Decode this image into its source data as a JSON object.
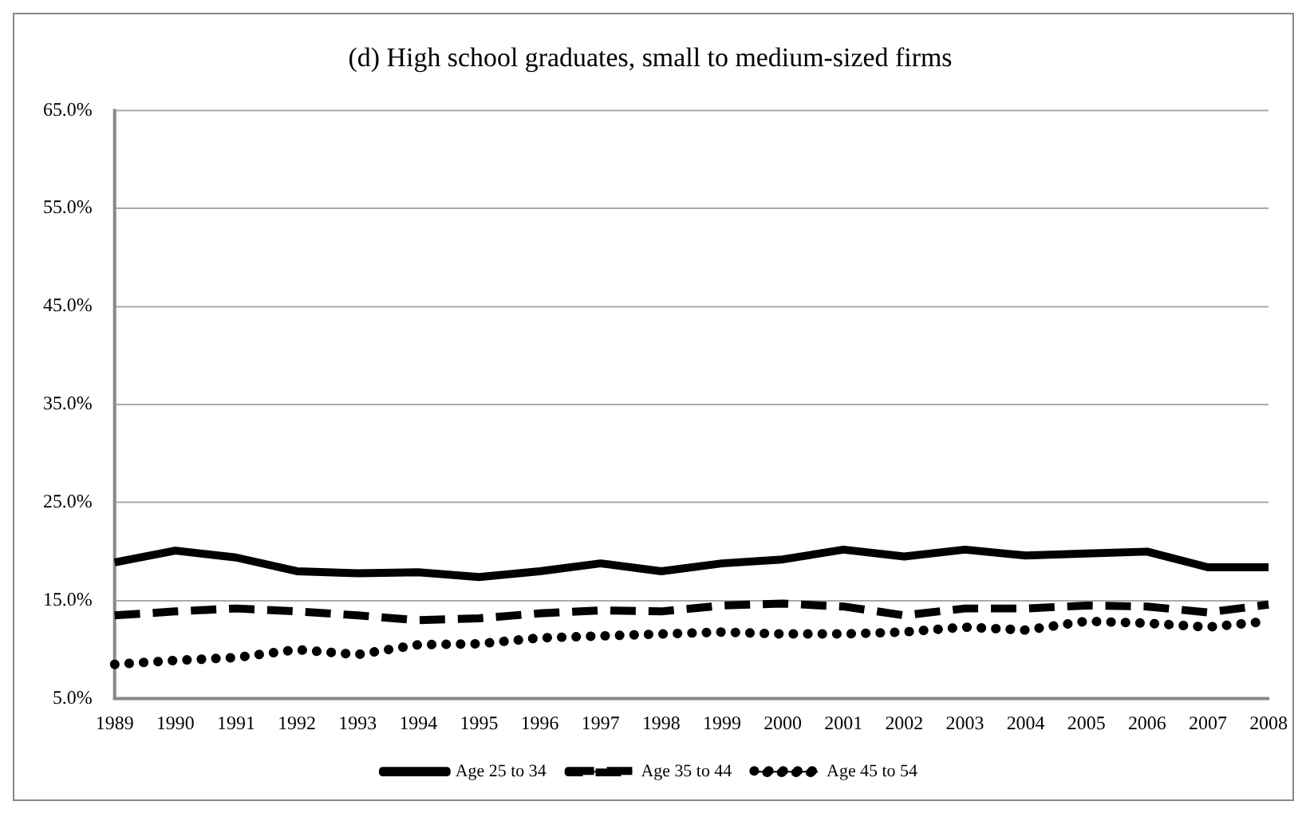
{
  "chart_data": {
    "type": "line",
    "title": "(d) High school graduates, small to medium-sized firms",
    "categories": [
      "1989",
      "1990",
      "1991",
      "1992",
      "1993",
      "1994",
      "1995",
      "1996",
      "1997",
      "1998",
      "1999",
      "2000",
      "2001",
      "2002",
      "2003",
      "2004",
      "2005",
      "2006",
      "2007",
      "2008"
    ],
    "series": [
      {
        "name": "Age 25 to 34",
        "color": "#000000",
        "line_style": "solid",
        "values": [
          18.9,
          20.1,
          19.4,
          18.0,
          17.8,
          17.9,
          17.4,
          18.0,
          18.8,
          18.0,
          18.8,
          19.2,
          20.2,
          19.5,
          20.2,
          19.6,
          19.8,
          20.0,
          18.4,
          18.4
        ]
      },
      {
        "name": "Age 35 to 44",
        "color": "#000000",
        "line_style": "dashed",
        "values": [
          13.5,
          13.9,
          14.2,
          13.9,
          13.5,
          13.0,
          13.2,
          13.7,
          14.0,
          13.9,
          14.5,
          14.7,
          14.4,
          13.5,
          14.2,
          14.2,
          14.5,
          14.4,
          13.8,
          14.6
        ]
      },
      {
        "name": "Age 45 to 54",
        "color": "#000000",
        "line_style": "dotted",
        "values": [
          8.5,
          8.9,
          9.2,
          10.0,
          9.5,
          10.5,
          10.6,
          11.2,
          11.4,
          11.6,
          11.8,
          11.6,
          11.6,
          11.8,
          12.3,
          12.0,
          12.9,
          12.7,
          12.3,
          12.9
        ]
      }
    ],
    "ylim": [
      5,
      65
    ],
    "yticks": [
      {
        "value": 5,
        "label": "5.0%"
      },
      {
        "value": 15,
        "label": "15.0%"
      },
      {
        "value": 25,
        "label": "25.0%"
      },
      {
        "value": 35,
        "label": "35.0%"
      },
      {
        "value": 45,
        "label": "45.0%"
      },
      {
        "value": 55,
        "label": "55.0%"
      },
      {
        "value": 65,
        "label": "65.0%"
      }
    ],
    "grid": "y",
    "legend": "bottom",
    "marker": "none"
  }
}
